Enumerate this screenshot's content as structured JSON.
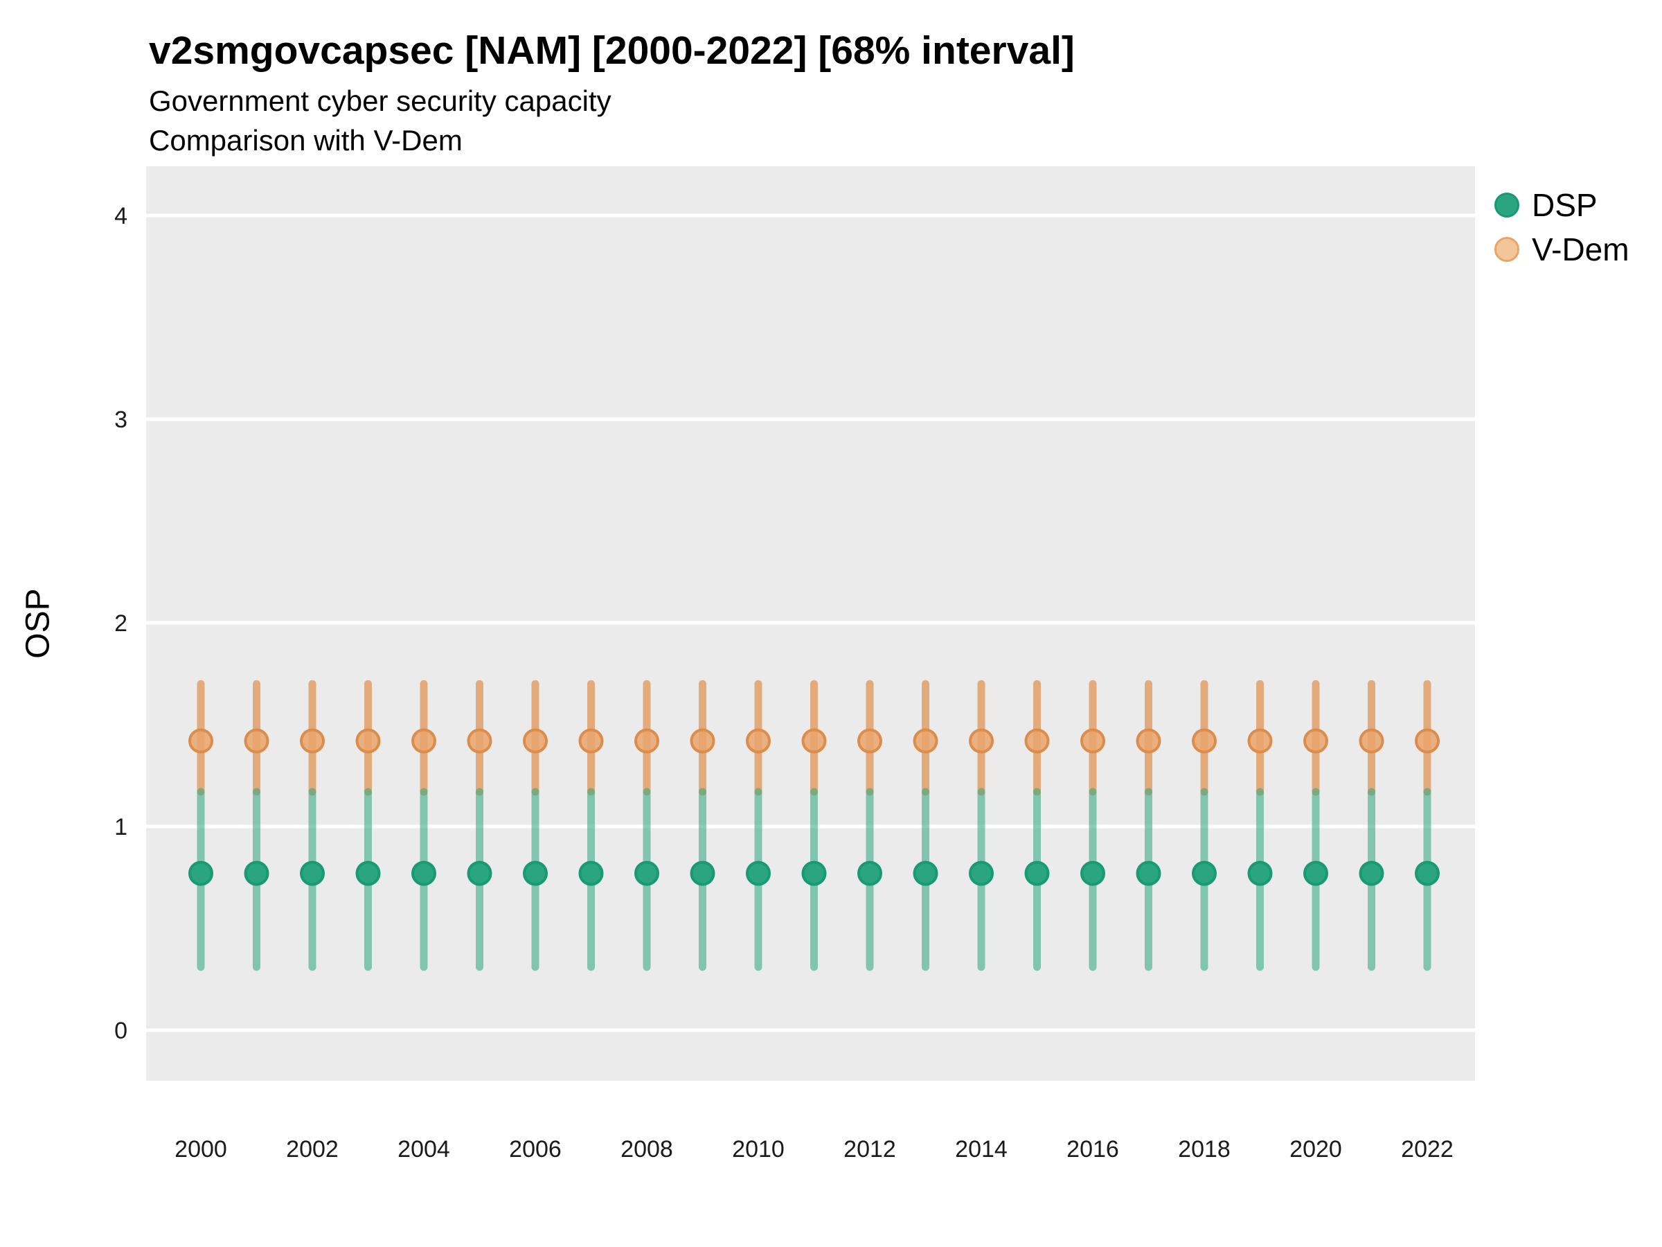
{
  "title": "v2smgovcapsec [NAM] [2000-2022] [68% interval]",
  "subtitle1": "Government cyber security capacity",
  "subtitle2": "Comparison with V-Dem",
  "ylabel": "OSP",
  "legend": [
    {
      "label": "DSP"
    },
    {
      "label": "V-Dem"
    }
  ],
  "colors": {
    "dsp_point": "#2AA57F",
    "dsp_point_stroke": "#189A72",
    "dsp_bar": "rgba(44,166,126,0.55)",
    "vdem_point": "#E9A56C",
    "vdem_point_stroke": "#DC8C4B",
    "vdem_bar": "rgba(223,130,56,0.62)",
    "legend_vdem_fill": "#F3C69A",
    "legend_vdem_stroke": "#E9A466",
    "panel_bg": "#EBEBEB",
    "gridline": "#FFFFFF",
    "axis_text": "#1A1A1A"
  },
  "chart_data": {
    "type": "pointrange",
    "title": "v2smgovcapsec [NAM] [2000-2022] [68% interval]",
    "subtitle": [
      "Government cyber security capacity",
      "Comparison with V-Dem"
    ],
    "xlabel": "",
    "ylabel": "OSP",
    "interval": "68%",
    "x": [
      2000,
      2001,
      2002,
      2003,
      2004,
      2005,
      2006,
      2007,
      2008,
      2009,
      2010,
      2011,
      2012,
      2013,
      2014,
      2015,
      2016,
      2017,
      2018,
      2019,
      2020,
      2021,
      2022
    ],
    "series": [
      {
        "name": "DSP",
        "points": [
          0.77,
          0.77,
          0.77,
          0.77,
          0.77,
          0.77,
          0.77,
          0.77,
          0.77,
          0.77,
          0.77,
          0.77,
          0.77,
          0.77,
          0.77,
          0.77,
          0.77,
          0.77,
          0.77,
          0.77,
          0.77,
          0.77,
          0.77
        ],
        "lo": [
          0.31,
          0.31,
          0.31,
          0.31,
          0.31,
          0.31,
          0.31,
          0.31,
          0.31,
          0.31,
          0.31,
          0.31,
          0.31,
          0.31,
          0.31,
          0.31,
          0.31,
          0.31,
          0.31,
          0.31,
          0.31,
          0.31,
          0.31
        ],
        "hi": [
          1.17,
          1.17,
          1.17,
          1.17,
          1.17,
          1.17,
          1.17,
          1.17,
          1.17,
          1.17,
          1.17,
          1.17,
          1.17,
          1.17,
          1.17,
          1.17,
          1.17,
          1.17,
          1.17,
          1.17,
          1.17,
          1.17,
          1.17
        ]
      },
      {
        "name": "V-Dem",
        "points": [
          1.42,
          1.42,
          1.42,
          1.42,
          1.42,
          1.42,
          1.42,
          1.42,
          1.42,
          1.42,
          1.42,
          1.42,
          1.42,
          1.42,
          1.42,
          1.42,
          1.42,
          1.42,
          1.42,
          1.42,
          1.42,
          1.42,
          1.42
        ],
        "lo": [
          1.17,
          1.17,
          1.17,
          1.17,
          1.17,
          1.17,
          1.17,
          1.17,
          1.17,
          1.17,
          1.17,
          1.17,
          1.17,
          1.17,
          1.17,
          1.17,
          1.17,
          1.17,
          1.17,
          1.17,
          1.17,
          1.17,
          1.17
        ],
        "hi": [
          1.7,
          1.7,
          1.7,
          1.7,
          1.7,
          1.7,
          1.7,
          1.7,
          1.7,
          1.7,
          1.7,
          1.7,
          1.7,
          1.7,
          1.7,
          1.7,
          1.7,
          1.7,
          1.7,
          1.7,
          1.7,
          1.7,
          1.7
        ]
      }
    ],
    "yticks": [
      0,
      1,
      2,
      3,
      4
    ],
    "xticks": [
      2000,
      2002,
      2004,
      2006,
      2008,
      2010,
      2012,
      2014,
      2016,
      2018,
      2020,
      2022
    ],
    "ylim": [
      -0.25,
      4.25
    ],
    "xlim": [
      1999.0,
      2022.9
    ],
    "grid": "major-y only, white on grey panel",
    "legend_position": "right-top"
  }
}
